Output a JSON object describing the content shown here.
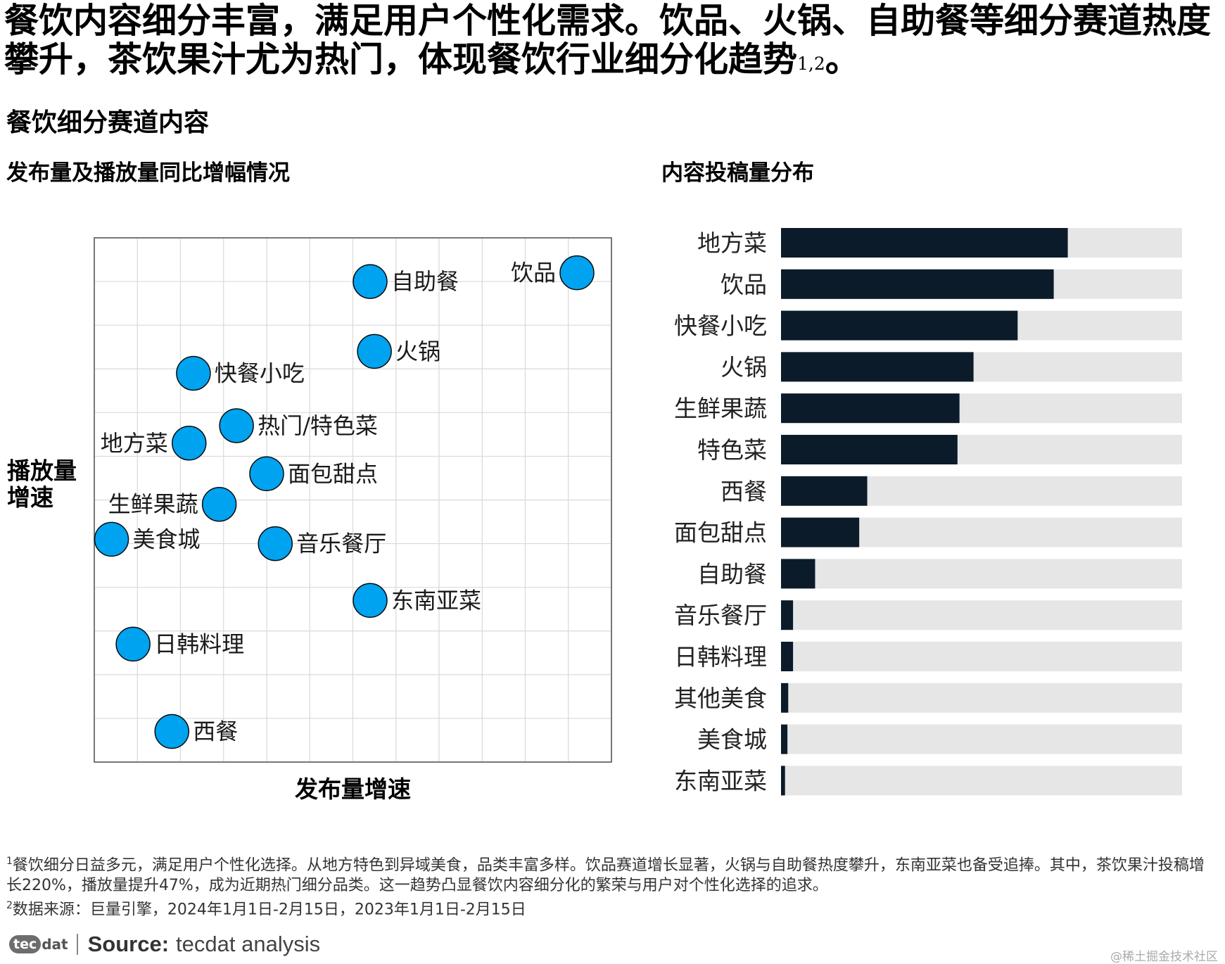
{
  "headline": {
    "text": "餐饮内容细分丰富，满足用户个性化需求。饮品、火锅、自助餐等细分赛道热度攀升，茶饮果汁尤为热门，体现餐饮行业细分化趋势",
    "superscript": "1,2",
    "end": "。"
  },
  "section_title": "餐饮细分赛道内容",
  "left_subtitle": "发布量及播放量同比增幅情况",
  "right_subtitle": "内容投稿量分布",
  "chart_data": [
    {
      "type": "scatter",
      "title": "发布量及播放量同比增幅情况",
      "xlabel": "发布量增速",
      "ylabel": "播放量增速",
      "grid": true,
      "xlim": [
        0,
        12
      ],
      "ylim": [
        0,
        12
      ],
      "marker_color": "#00A3F0",
      "points": [
        {
          "name": "饮品",
          "x": 11.2,
          "y": 11.2,
          "label_side": "left"
        },
        {
          "name": "自助餐",
          "x": 6.4,
          "y": 11.0,
          "label_side": "right"
        },
        {
          "name": "火锅",
          "x": 6.5,
          "y": 9.4,
          "label_side": "right"
        },
        {
          "name": "快餐小吃",
          "x": 2.3,
          "y": 8.9,
          "label_side": "right"
        },
        {
          "name": "热门/特色菜",
          "x": 3.3,
          "y": 7.7,
          "label_side": "right"
        },
        {
          "name": "地方菜",
          "x": 2.2,
          "y": 7.3,
          "label_side": "left"
        },
        {
          "name": "面包甜点",
          "x": 4.0,
          "y": 6.6,
          "label_side": "right"
        },
        {
          "name": "生鲜果蔬",
          "x": 2.9,
          "y": 5.9,
          "label_side": "left"
        },
        {
          "name": "美食城",
          "x": 0.4,
          "y": 5.1,
          "label_side": "right"
        },
        {
          "name": "音乐餐厅",
          "x": 4.2,
          "y": 5.0,
          "label_side": "right"
        },
        {
          "name": "东南亚菜",
          "x": 6.4,
          "y": 3.7,
          "label_side": "right"
        },
        {
          "name": "日韩料理",
          "x": 0.9,
          "y": 2.7,
          "label_side": "right"
        },
        {
          "name": "西餐",
          "x": 1.8,
          "y": 0.7,
          "label_side": "right"
        }
      ]
    },
    {
      "type": "bar",
      "orientation": "horizontal",
      "title": "内容投稿量分布",
      "bar_color": "#0B1B2A",
      "track_color": "#E6E6E6",
      "categories": [
        "地方菜",
        "饮品",
        "快餐小吃",
        "火锅",
        "生鲜果蔬",
        "特色菜",
        "西餐",
        "面包甜点",
        "自助餐",
        "音乐餐厅",
        "日韩料理",
        "其他美食",
        "美食城",
        "东南亚菜"
      ],
      "values": [
        71.5,
        68,
        59,
        48,
        44.5,
        44,
        21.5,
        19.5,
        8.5,
        3,
        3,
        1.8,
        1.6,
        1.0
      ],
      "xlim": [
        0,
        100
      ]
    }
  ],
  "footnotes": {
    "note1_mark": "1",
    "note1": "餐饮细分日益多元，满足用户个性化选择。从地方特色到异域美食，品类丰富多样。饮品赛道增长显著，火锅与自助餐热度攀升，东南亚菜也备受追捧。其中，茶饮果汁投稿增长220%，播放量提升47%，成为近期热门细分品类。这一趋势凸显餐饮内容细分化的繁荣与用户对个性化选择的追求。",
    "note2_mark": "2",
    "note2": "数据来源：巨量引擎，2024年1月1日-2月15日，2023年1月1日-2月15日"
  },
  "source": {
    "logo_badge": "tec",
    "logo_rest": "dat",
    "prefix": "Source:",
    "text": "tecdat analysis"
  },
  "watermark": "@稀土掘金技术社区"
}
